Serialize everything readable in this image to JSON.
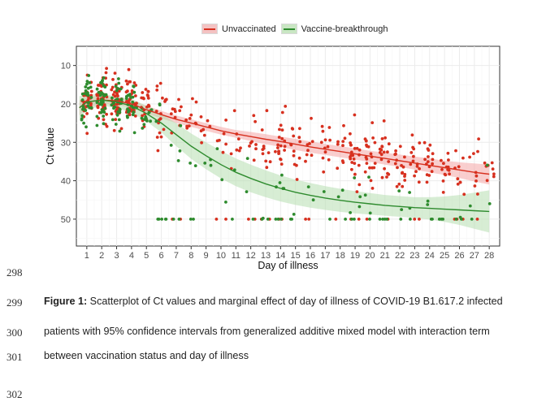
{
  "chart_data": {
    "type": "scatter",
    "xlabel": "Day of illness",
    "ylabel": "Ct value",
    "x_ticks": [
      1,
      2,
      3,
      4,
      5,
      6,
      7,
      8,
      9,
      10,
      11,
      12,
      13,
      14,
      15,
      16,
      17,
      18,
      19,
      20,
      21,
      22,
      23,
      24,
      25,
      26,
      27,
      28
    ],
    "y_ticks": [
      10,
      20,
      30,
      40,
      50
    ],
    "xlim": [
      0.3,
      28.7
    ],
    "ylim": [
      5,
      57
    ],
    "y_reversed": true,
    "grid": true,
    "legend_position": "top",
    "series": [
      {
        "name": "Unvaccinated",
        "color": "#d7301f",
        "band_color": "#f4a6a6",
        "fit_x": [
          0.5,
          1,
          2,
          3,
          4,
          5,
          6,
          7,
          8,
          9,
          10,
          11,
          12,
          13,
          14,
          15,
          16,
          17,
          18,
          19,
          20,
          21,
          22,
          23,
          24,
          25,
          26,
          27,
          28
        ],
        "fit_y": [
          21,
          19.5,
          19,
          19.2,
          20,
          21.5,
          22.8,
          24,
          25,
          26,
          27,
          27.8,
          28.5,
          29.2,
          29.8,
          30.5,
          31.2,
          31.8,
          32.4,
          33,
          33.6,
          34.2,
          34.8,
          35.4,
          36,
          36.6,
          37.2,
          37.8,
          38.3
        ],
        "band_lower": [
          23,
          21,
          20,
          20.2,
          21,
          22.5,
          23.8,
          25,
          26,
          27,
          28,
          28.8,
          29.7,
          30.5,
          31.2,
          32,
          32.7,
          33.3,
          33.9,
          34.5,
          35.1,
          35.8,
          36.4,
          37.1,
          37.8,
          38.5,
          39.3,
          40.2,
          41
        ],
        "band_upper": [
          19,
          18,
          18,
          18.3,
          19,
          20.5,
          21.8,
          23,
          24,
          25,
          26,
          26.8,
          27.3,
          27.9,
          28.5,
          29.1,
          29.8,
          30.4,
          31,
          31.6,
          32.2,
          32.7,
          33.2,
          33.7,
          34.2,
          34.8,
          35.2,
          35.5,
          35.8
        ]
      },
      {
        "name": "Vaccine-breakthrough",
        "color": "#2e8b2e",
        "band_color": "#b6deb0",
        "fit_x": [
          0.5,
          1,
          2,
          3,
          4,
          5,
          6,
          7,
          8,
          9,
          10,
          11,
          12,
          13,
          14,
          15,
          16,
          17,
          18,
          19,
          20,
          21,
          22,
          23,
          24,
          25,
          26,
          27,
          28
        ],
        "fit_y": [
          21,
          19.5,
          19,
          19.5,
          20.5,
          22.5,
          25,
          28,
          31,
          33.5,
          35.8,
          37.8,
          39.4,
          40.8,
          42,
          43,
          43.8,
          44.5,
          45.1,
          45.6,
          46,
          46.4,
          46.7,
          47,
          47.2,
          47.4,
          47.6,
          47.8,
          48
        ],
        "band_lower": [
          24,
          21.5,
          20.5,
          21,
          22.3,
          24.5,
          27.4,
          31,
          34.3,
          37,
          39.4,
          41.4,
          43,
          44.3,
          45.4,
          46.3,
          47,
          47.6,
          48.1,
          48.5,
          48.8,
          49.1,
          49.4,
          49.7,
          50.1,
          50.7,
          51.5,
          52.5,
          53.5
        ],
        "band_upper": [
          18,
          17.5,
          17.5,
          18,
          18.7,
          20.5,
          22.6,
          25,
          27.7,
          30,
          32.2,
          34.2,
          35.8,
          37.3,
          38.6,
          39.7,
          40.6,
          41.4,
          42.1,
          42.7,
          43.2,
          43.7,
          44,
          44.3,
          44.3,
          44.1,
          43.7,
          43.1,
          42.5
        ]
      }
    ]
  },
  "legend": {
    "unvaccinated": "Unvaccinated",
    "breakthrough": "Vaccine-breakthrough"
  },
  "document": {
    "line_numbers": [
      "298",
      "299",
      "300",
      "301",
      "302"
    ],
    "caption_label": "Figure 1:",
    "caption_line1": " Scatterplot of Ct values and marginal effect of day of illness of COVID-19 B1.617.2 infected",
    "caption_line2": "patients with 95% confidence intervals from generalized additive mixed model with interaction term",
    "caption_line3": "between vaccination status and day of illness"
  }
}
